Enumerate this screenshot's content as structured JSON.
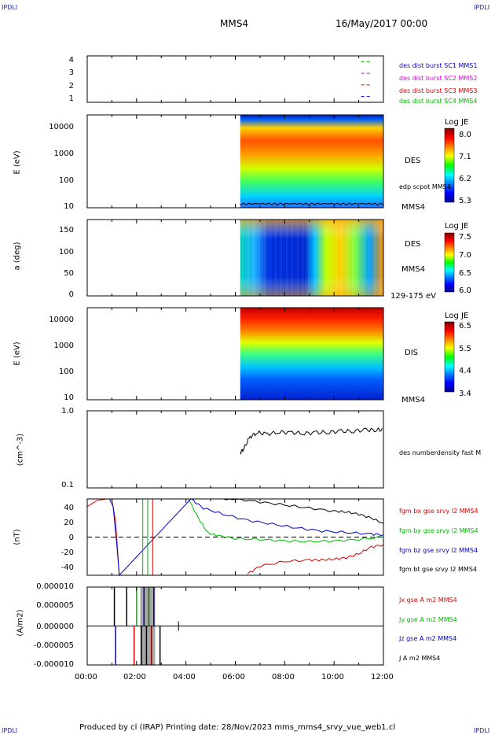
{
  "corner_labels": {
    "top_left": "IPDLI",
    "top_right": "IPDLI",
    "bottom_left": "IPDLI",
    "bottom_right": "IPDLI"
  },
  "header": {
    "spacecraft": "MMS4",
    "date": "16/May/2017 00:00"
  },
  "time_axis": {
    "ticks": [
      "00:00",
      "02:00",
      "04:00",
      "06:00",
      "08:00",
      "10:00",
      "12:00"
    ]
  },
  "footer": {
    "text": "Produced by cl (IRAP)   Printing date: 28/Nov/2023   mms_mms4_srvy_vue_web1.cl"
  },
  "colors": {
    "red": "#dd0000",
    "magenta": "#dd00dd",
    "blue": "#0000cc",
    "green": "#00bb00",
    "black": "#000000"
  },
  "panels": {
    "avail": {
      "yticks": [
        "4",
        "3",
        "2",
        "1"
      ],
      "legend": [
        {
          "text": "des dist burst SC1 MMS1",
          "color": "#0000cc"
        },
        {
          "text": "des dist burst SC2 MMS2",
          "color": "#dd00dd"
        },
        {
          "text": "des dist burst SC3 MMS3",
          "color": "#dd0000"
        },
        {
          "text": "des dist burst SC4 MMS4",
          "color": "#00bb00"
        }
      ]
    },
    "des_energy": {
      "ylabel": "E (eV)",
      "yticks": [
        "10000",
        "1000",
        "100",
        "10"
      ],
      "label": "DES",
      "label2": "edp scpot MMS4",
      "label3": "MMS4",
      "colorbar": {
        "title": "Log JE",
        "ticks": [
          "8.0",
          "7.1",
          "6.2",
          "5.3"
        ]
      }
    },
    "des_pitch": {
      "ylabel": "a (deg)",
      "yticks": [
        "150",
        "100",
        "50",
        "0"
      ],
      "label": "DES",
      "label2": "MMS4",
      "label3": "129-175 eV",
      "colorbar": {
        "title": "Log JE",
        "ticks": [
          "7.5",
          "7.0",
          "6.5",
          "6.0"
        ]
      }
    },
    "dis_energy": {
      "ylabel": "E (eV)",
      "yticks": [
        "10000",
        "1000",
        "100",
        "10"
      ],
      "label": "DIS",
      "label2": "MMS4",
      "colorbar": {
        "title": "Log JE",
        "ticks": [
          "6.5",
          "5.5",
          "4.4",
          "3.4"
        ]
      }
    },
    "density": {
      "ylabel": "(cm^-3)",
      "yticks": [
        "1.0",
        "0.1"
      ],
      "label": "des numberdensity fast M"
    },
    "bfield": {
      "ylabel": "(nT)",
      "yticks": [
        "40",
        "20",
        "0",
        "-20",
        "-40"
      ],
      "legend": [
        {
          "text": "fgm bx gse srvy l2 MMS4",
          "color": "#dd0000"
        },
        {
          "text": "fgm by gse srvy l2 MMS4",
          "color": "#00bb00"
        },
        {
          "text": "fgm bz gse srvy l2 MMS4",
          "color": "#0000cc"
        },
        {
          "text": "fgm bt gse srvy l2 MMS4",
          "color": "#000000"
        }
      ]
    },
    "current": {
      "ylabel": "(A/m2)",
      "yticks": [
        "0.000010",
        "0.000005",
        "0.000000",
        "-0.000005",
        "-0.000010"
      ],
      "legend": [
        {
          "text": "Jx gse A m2 MMS4",
          "color": "#dd0000"
        },
        {
          "text": "Jy gse A m2 MMS4",
          "color": "#00bb00"
        },
        {
          "text": "Jz gse A m2 MMS4",
          "color": "#0000cc"
        },
        {
          "text": "J A m2 MMS4",
          "color": "#000000"
        }
      ]
    }
  },
  "chart_data": [
    {
      "type": "scatter",
      "panel": "avail",
      "x_unit": "hours",
      "ylim": [
        0.5,
        4.5
      ],
      "yticks": [
        1,
        2,
        3,
        4
      ],
      "series": [
        {
          "x": [
            11.1,
            11.5
          ],
          "y": [
            4,
            4
          ]
        },
        {
          "x": [
            11.1,
            11.5
          ],
          "y": [
            3,
            3
          ]
        },
        {
          "x": [
            11.1,
            11.5
          ],
          "y": [
            2,
            2
          ]
        },
        {
          "x": [
            11.1,
            11.5
          ],
          "y": [
            1,
            1
          ]
        }
      ]
    },
    {
      "type": "heatmap",
      "panel": "des_energy",
      "ylabel": "E (eV)",
      "yscale": "log",
      "ylim": [
        10,
        30000
      ],
      "data_start_hour": 6.2,
      "colorbar_range": [
        5.3,
        8.0
      ]
    },
    {
      "type": "heatmap",
      "panel": "des_pitch",
      "ylabel": "a (deg)",
      "ylim": [
        0,
        180
      ],
      "data_start_hour": 6.2,
      "colorbar_range": [
        6.0,
        7.5
      ]
    },
    {
      "type": "heatmap",
      "panel": "dis_energy",
      "ylabel": "E (eV)",
      "yscale": "log",
      "ylim": [
        10,
        30000
      ],
      "data_start_hour": 6.2,
      "colorbar_range": [
        3.4,
        6.5
      ]
    },
    {
      "type": "line",
      "panel": "density",
      "ylabel": "(cm^-3)",
      "yscale": "log",
      "ylim": [
        0.1,
        1.0
      ],
      "series": [
        {
          "x": [
            6.2,
            6.35,
            6.6,
            6.9,
            7.3,
            7.8,
            8.3,
            8.8,
            9.3,
            9.8,
            10.3,
            10.8,
            11.3,
            11.7,
            12.0
          ],
          "y": [
            0.29,
            0.32,
            0.46,
            0.52,
            0.5,
            0.53,
            0.52,
            0.51,
            0.52,
            0.53,
            0.54,
            0.55,
            0.56,
            0.57,
            0.56
          ]
        }
      ]
    },
    {
      "type": "line",
      "panel": "bfield",
      "ylabel": "(nT)",
      "ylim": [
        -50,
        50
      ],
      "series": [
        {
          "x": [
            0,
            0.4,
            0.8,
            1.0,
            1.15,
            1.3
          ],
          "y": [
            40,
            48,
            50,
            50,
            20,
            -50
          ]
        },
        {
          "x": [
            4.1,
            4.5,
            4.9,
            5.3,
            6,
            7,
            8,
            9,
            10,
            11,
            12
          ],
          "y": [
            50,
            25,
            5,
            2,
            -2,
            -3,
            -5,
            -6,
            -5,
            -3,
            0
          ]
        },
        {
          "x": [
            0.9,
            1.05,
            1.2,
            1.3,
            4.2,
            4.7,
            5.5,
            6.5,
            7.5,
            8.5,
            9.5,
            10.5,
            11.5,
            12
          ],
          "y": [
            50,
            40,
            -10,
            -50,
            50,
            38,
            30,
            22,
            17,
            12,
            8,
            6,
            4,
            3
          ]
        },
        {
          "x": [
            6.5,
            7,
            8,
            9,
            9.5,
            10,
            10.5,
            11,
            11.5,
            12
          ],
          "y": [
            -48,
            -38,
            -32,
            -30,
            -30,
            -29,
            -27,
            -22,
            -13,
            -10
          ]
        },
        {
          "x": [
            5.4,
            6,
            7,
            8,
            9,
            10,
            10.5,
            11,
            11.5,
            12
          ],
          "y": [
            50,
            50,
            46,
            42,
            38,
            34,
            33,
            30,
            25,
            18
          ]
        }
      ]
    },
    {
      "type": "line",
      "panel": "current",
      "ylabel": "(A/m2)",
      "ylim": [
        -1e-05,
        1e-05
      ],
      "x_range": [
        0,
        12
      ]
    }
  ]
}
